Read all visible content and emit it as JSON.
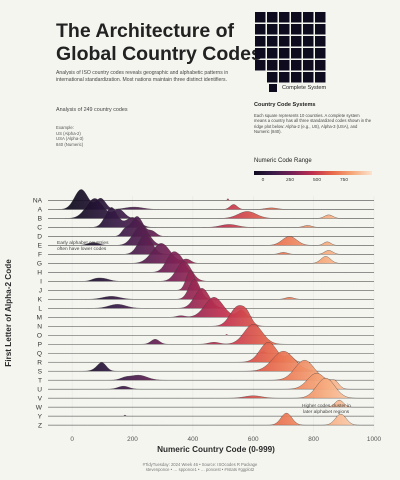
{
  "title_line1": "The Architecture of",
  "title_line2": "Global Country Codes",
  "subtitle": "Analysis of ISO country codes reveals geographic and alphabetic patterns in international standardization. Most nations maintain three distinct identifiers.",
  "count_text": "Analysis of 249 country codes",
  "example": {
    "heading": "Example:",
    "lines": [
      "US (Alpha-2)",
      "USA (Alpha-3)",
      "840 (Numeric)"
    ]
  },
  "waffle_legend_label": "Complete System",
  "systems": {
    "title": "Country Code Systems",
    "text": "Each square represents 10 countries. A complete system means a country has all three standardized codes shown in the ridge plot below: Alpha-2 (e.g., US), Alpha-3 (USA), and Numeric (840)."
  },
  "colorbar": {
    "title": "Numeric Code Range",
    "ticks": [
      "0",
      "250",
      "500",
      "750"
    ],
    "colors": [
      "#0f0b1f",
      "#3b1c4a",
      "#7a2156",
      "#c0304e",
      "#e86a4a",
      "#f6a97a",
      "#fbe3cf"
    ]
  },
  "annotations": {
    "early_line1": "Early alphabet countries",
    "early_line2": "often have lower codes",
    "late_line1": "Higher codes cluster in",
    "late_line2": "later alphabet regions"
  },
  "caption_line1": "#TidyTuesday: 2024 Week 46 • Source: ISOcodes R Package",
  "caption_line2": "stevenponce • … spponce1 • … poncest • #rstats #ggplot2",
  "chart_data": {
    "type": "ridgeline",
    "xlabel": "Numeric Country Code (0-999)",
    "ylabel": "First Letter of Alpha-2 Code",
    "xlim": [
      -80,
      1000
    ],
    "xticks": [
      0,
      200,
      400,
      600,
      800,
      1000
    ],
    "categories": [
      "NA",
      "A",
      "B",
      "C",
      "D",
      "E",
      "F",
      "G",
      "H",
      "I",
      "J",
      "K",
      "L",
      "M",
      "N",
      "O",
      "P",
      "Q",
      "R",
      "S",
      "T",
      "U",
      "V",
      "W",
      "Y",
      "Z"
    ],
    "series": [
      {
        "letter": "NA",
        "peaks": [
          [
            516,
            2,
            0.1
          ]
        ]
      },
      {
        "letter": "A",
        "peaks": [
          [
            30,
            22,
            1.0
          ],
          [
            95,
            16,
            0.55
          ],
          [
            205,
            30,
            0.12
          ],
          [
            535,
            12,
            0.25
          ],
          [
            660,
            20,
            0.08
          ]
        ]
      },
      {
        "letter": "B",
        "peaks": [
          [
            75,
            28,
            1.0
          ],
          [
            155,
            18,
            0.45
          ],
          [
            580,
            30,
            0.35
          ],
          [
            850,
            14,
            0.18
          ]
        ]
      },
      {
        "letter": "C",
        "peaks": [
          [
            130,
            20,
            1.0
          ],
          [
            200,
            22,
            0.5
          ],
          [
            520,
            28,
            0.15
          ],
          [
            780,
            14,
            0.1
          ]
        ]
      },
      {
        "letter": "D",
        "peaks": [
          [
            215,
            20,
            1.0
          ],
          [
            175,
            12,
            0.3
          ],
          [
            265,
            14,
            0.25
          ]
        ]
      },
      {
        "letter": "E",
        "peaks": [
          [
            228,
            25,
            1.0
          ],
          [
            70,
            18,
            0.15
          ],
          [
            720,
            24,
            0.45
          ],
          [
            845,
            12,
            0.18
          ]
        ]
      },
      {
        "letter": "F",
        "peaks": [
          [
            242,
            22,
            1.0
          ],
          [
            850,
            14,
            0.2
          ],
          [
            700,
            14,
            0.1
          ]
        ]
      },
      {
        "letter": "G",
        "peaks": [
          [
            295,
            30,
            1.0
          ],
          [
            380,
            14,
            0.2
          ],
          [
            840,
            16,
            0.35
          ]
        ]
      },
      {
        "letter": "H",
        "peaks": [
          [
            335,
            22,
            1.0
          ],
          [
            365,
            14,
            0.3
          ]
        ]
      },
      {
        "letter": "I",
        "peaks": [
          [
            370,
            24,
            1.0
          ],
          [
            100,
            22,
            0.15
          ],
          [
            75,
            14,
            0.06
          ]
        ]
      },
      {
        "letter": "J",
        "peaks": [
          [
            392,
            14,
            1.0
          ]
        ]
      },
      {
        "letter": "K",
        "peaks": [
          [
            405,
            18,
            1.0
          ],
          [
            130,
            28,
            0.15
          ],
          [
            720,
            14,
            0.1
          ]
        ]
      },
      {
        "letter": "L",
        "peaks": [
          [
            430,
            24,
            1.0
          ],
          [
            150,
            28,
            0.2
          ]
        ]
      },
      {
        "letter": "M",
        "peaks": [
          [
            470,
            30,
            1.0
          ],
          [
            560,
            14,
            0.35
          ],
          [
            360,
            14,
            0.08
          ]
        ]
      },
      {
        "letter": "N",
        "peaks": [
          [
            550,
            26,
            1.0
          ],
          [
            580,
            14,
            0.3
          ]
        ]
      },
      {
        "letter": "O",
        "peaks": [
          [
            512,
            2,
            0.05
          ]
        ]
      },
      {
        "letter": "P",
        "peaks": [
          [
            600,
            30,
            1.0
          ],
          [
            275,
            14,
            0.25
          ],
          [
            470,
            18,
            0.1
          ]
        ]
      },
      {
        "letter": "Q",
        "peaks": [
          [
            634,
            6,
            0.08
          ]
        ]
      },
      {
        "letter": "R",
        "peaks": [
          [
            650,
            28,
            1.0
          ],
          [
            720,
            14,
            0.3
          ]
        ]
      },
      {
        "letter": "S",
        "peaks": [
          [
            700,
            36,
            1.0
          ],
          [
            100,
            14,
            0.3
          ],
          [
            90,
            18,
            0.15
          ]
        ]
      },
      {
        "letter": "T",
        "peaks": [
          [
            770,
            32,
            1.0
          ],
          [
            220,
            28,
            0.25
          ],
          [
            175,
            16,
            0.1
          ]
        ]
      },
      {
        "letter": "U",
        "peaks": [
          [
            810,
            30,
            0.8
          ],
          [
            870,
            14,
            0.35
          ],
          [
            170,
            18,
            0.15
          ]
        ]
      },
      {
        "letter": "V",
        "peaks": [
          [
            840,
            30,
            1.0
          ],
          [
            600,
            28,
            0.12
          ]
        ]
      },
      {
        "letter": "W",
        "peaks": [
          [
            885,
            14,
            0.35
          ]
        ]
      },
      {
        "letter": "Y",
        "peaks": [
          [
            175,
            2,
            0.06
          ]
        ]
      },
      {
        "letter": "Z",
        "peaks": [
          [
            710,
            18,
            0.6
          ],
          [
            890,
            18,
            0.55
          ]
        ]
      }
    ]
  }
}
